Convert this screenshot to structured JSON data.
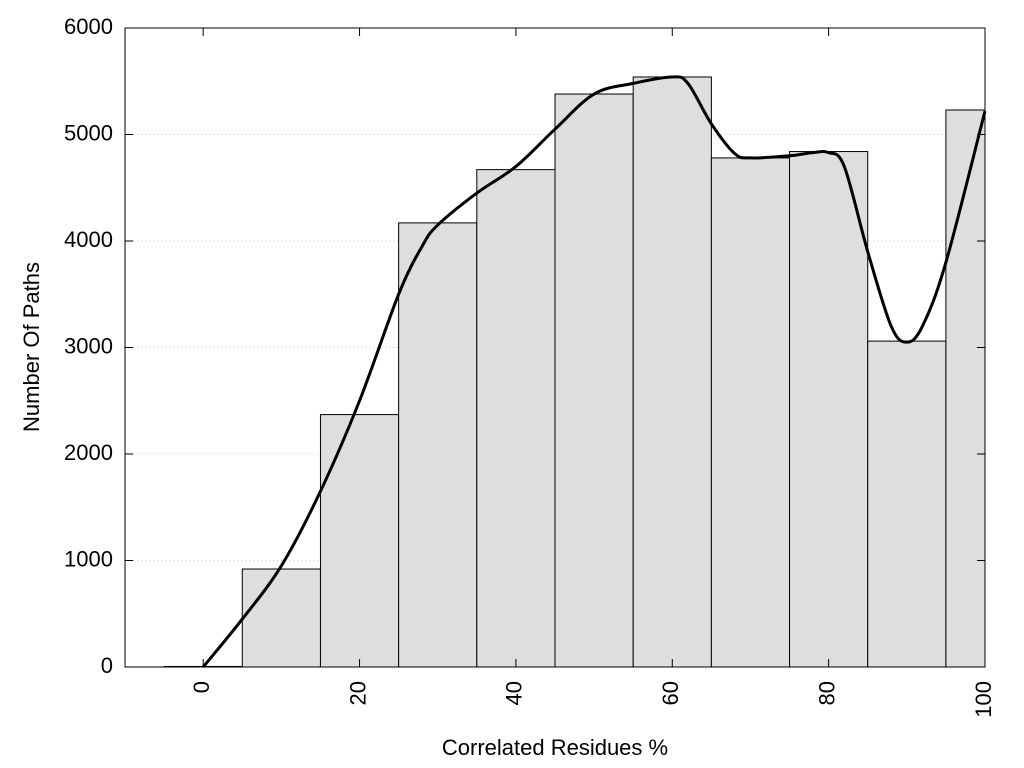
{
  "chart_data": {
    "type": "bar",
    "title": "",
    "xlabel": "Correlated Residues %",
    "ylabel": "Number Of Paths",
    "x_ticks": [
      0,
      20,
      40,
      60,
      80,
      100
    ],
    "y_ticks": [
      0,
      1000,
      2000,
      3000,
      4000,
      5000,
      6000
    ],
    "xlim": [
      -10,
      100
    ],
    "ylim": [
      0,
      6000
    ],
    "grid": "horizontal dotted",
    "bar_width": 10,
    "bars": [
      {
        "x": 0,
        "value": 5
      },
      {
        "x": 10,
        "value": 920
      },
      {
        "x": 20,
        "value": 2370
      },
      {
        "x": 30,
        "value": 4170
      },
      {
        "x": 40,
        "value": 4670
      },
      {
        "x": 50,
        "value": 5380
      },
      {
        "x": 60,
        "value": 5540
      },
      {
        "x": 70,
        "value": 4780
      },
      {
        "x": 80,
        "value": 4840
      },
      {
        "x": 90,
        "value": 3060
      },
      {
        "x": 100,
        "value": 5230
      }
    ],
    "curve": {
      "x": [
        0,
        5,
        10,
        15,
        20,
        25,
        28,
        30,
        35,
        40,
        45,
        50,
        55,
        60,
        62,
        65,
        68,
        70,
        75,
        78,
        80,
        82,
        85,
        88,
        90,
        92,
        95,
        100
      ],
      "y": [
        0,
        450,
        950,
        1650,
        2500,
        3500,
        3950,
        4150,
        4450,
        4700,
        5050,
        5380,
        5480,
        5540,
        5480,
        5100,
        4820,
        4780,
        4800,
        4830,
        4830,
        4700,
        3900,
        3200,
        3050,
        3200,
        3800,
        5220
      ]
    },
    "colors": {
      "bar_fill": "#dedede",
      "bar_stroke": "#000000",
      "curve": "#000000",
      "grid": "#c8c8c8"
    }
  }
}
